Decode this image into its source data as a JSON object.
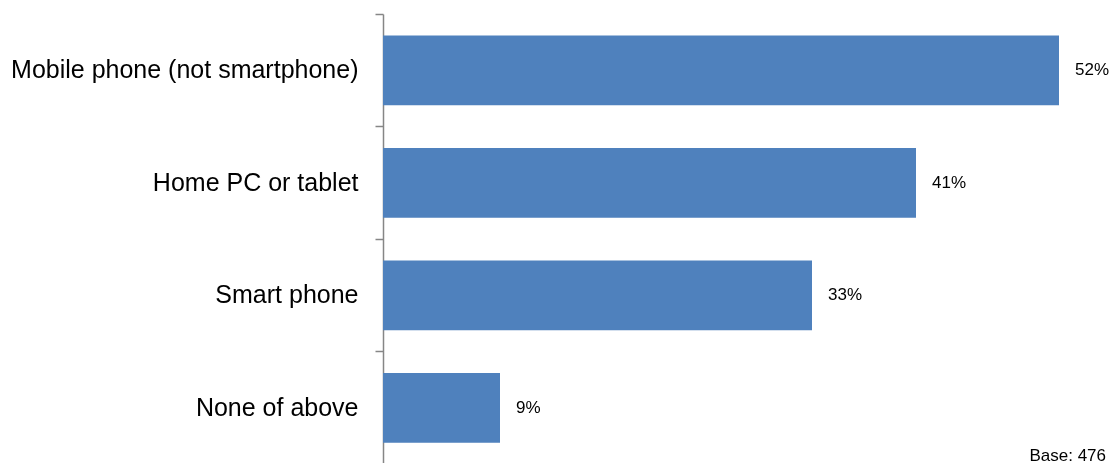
{
  "chart_data": {
    "type": "bar",
    "orientation": "horizontal",
    "categories": [
      "Mobile phone (not smartphone)",
      "Home PC or tablet",
      "Smart phone",
      "None of above"
    ],
    "values": [
      52,
      41,
      33,
      9
    ],
    "value_labels": [
      "52%",
      "41%",
      "33%",
      "9%"
    ],
    "color": "#4f81bd",
    "tick_labels": "y",
    "annotations": [
      "Base: 476"
    ]
  }
}
